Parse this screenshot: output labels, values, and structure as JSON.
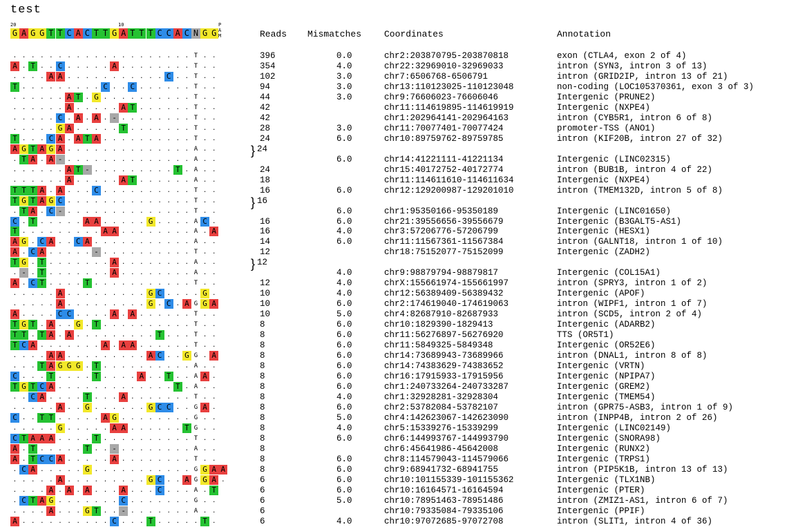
{
  "title": "test",
  "ruler": {
    "pos20": "20",
    "pos10": "10",
    "pam": "P A M"
  },
  "reference": [
    "G",
    "A",
    "G",
    "G",
    "T",
    "T",
    "C",
    "A",
    "C",
    "T",
    "T",
    "G",
    "A",
    "T",
    "T",
    "T",
    "C",
    "C",
    "A",
    "C",
    "N",
    "G",
    "G"
  ],
  "headers": {
    "reads": "Reads",
    "mismatches": "Mismatches",
    "coordinates": "Coordinates",
    "annotation": "Annotation"
  },
  "colors": {
    "A": "#e8403f",
    "C": "#2e8ce8",
    "G": "#f2e82a",
    "T": "#25c232",
    "N": "#a8a8a8"
  },
  "rows": [
    {
      "seq": "....................T..",
      "reads": "396",
      "mm": "0.0",
      "coord": "chr2:203870795-203870818",
      "ann": "exon (CTLA4, exon 2 of 4)"
    },
    {
      "seq": "A.T..C.....A........T..",
      "reads": "354",
      "mm": "4.0",
      "coord": "chr22:32969010-32969033",
      "ann": "intron (SYN3, intron 3 of 13)"
    },
    {
      "seq": "....AA...........C..T..",
      "reads": "102",
      "mm": "3.0",
      "coord": "chr7:6506768-6506791",
      "ann": "intron (GRID2IP, intron 13 of 21)"
    },
    {
      "seq": "T.........C..C......T..",
      "reads": "94",
      "mm": "3.0",
      "coord": "chr13:110123025-110123048",
      "ann": "non-coding (LOC105370361, exon 3 of 3)"
    },
    {
      "seq": "......AT.G..........T..",
      "reads": "44",
      "mm": "3.0",
      "coord": "chr9:76606023-76606046",
      "ann": "Intergenic (PRUNE2)"
    },
    {
      "seq": "......A.....AT......T..",
      "reads": "42",
      "mm": "",
      "coord": "chr11:114619895-114619919",
      "ann": "Intergenic (NXPE4)"
    },
    {
      "seq": ".....C.A.A.-........T..",
      "reads": "42",
      "mm": "",
      "coord": "chr1:202964141-202964163",
      "ann": "intron (CYB5R1, intron 6 of 8)"
    },
    {
      "seq": ".....GA.....T.......T..",
      "reads": "28",
      "mm": "3.0",
      "coord": "chr11:70077401-70077424",
      "ann": "promoter-TSS (ANO1)"
    },
    {
      "seq": "T...CA.ATA..........T..",
      "reads": "24",
      "mm": "6.0",
      "coord": "chr10:89759762-89759785",
      "ann": "intron (KIF20B, intron 27 of 32)"
    },
    {
      "seq": "AGTAGA..............A..",
      "reads": "24",
      "mm": "",
      "coord": "",
      "ann": "",
      "brace": "}"
    },
    {
      "seq": ".TA.A-..............A..",
      "reads": "",
      "mm": "6.0",
      "coord": "chr14:41221111-41221134",
      "ann": "Intergenic (LINC02315)"
    },
    {
      "seq": "......AT-.........T.A..",
      "reads": "24",
      "mm": "",
      "coord": "chr15:40172752-40172774",
      "ann": "intron (BUB1B, intron 4 of 22)"
    },
    {
      "seq": "......A.....AT......A..",
      "reads": "18",
      "mm": "",
      "coord": "chr11:114611610-114611634",
      "ann": "Intergenic (NXPE4)"
    },
    {
      "seq": "TTTA.A...C..........T..",
      "reads": "16",
      "mm": "6.0",
      "coord": "chr12:129200987-129201010",
      "ann": "intron (TMEM132D, intron 5 of 8)"
    },
    {
      "seq": "TGTAGC..............T..",
      "reads": "16",
      "mm": "",
      "coord": "",
      "ann": "",
      "brace": "}"
    },
    {
      "seq": ".TA.C-..............T..",
      "reads": "",
      "mm": "6.0",
      "coord": "chr1:95350166-95350189",
      "ann": "Intergenic (LINC01650)"
    },
    {
      "seq": "C.T.....AA.....G....AC.",
      "reads": "16",
      "mm": "6.0",
      "coord": "chr21:39556656-39556679",
      "ann": "Intergenic (B3GALT5-AS1)"
    },
    {
      "seq": "T.........AA........A.A",
      "reads": "16",
      "mm": "4.0",
      "coord": "chr3:57206776-57206799",
      "ann": "Intergenic (HESX1)"
    },
    {
      "seq": "AG.CA..CA...........A..",
      "reads": "14",
      "mm": "6.0",
      "coord": "chr11:11567361-11567384",
      "ann": "intron (GALNT18, intron 1 of 10)"
    },
    {
      "seq": "A.CA.....-..........T..",
      "reads": "12",
      "mm": "",
      "coord": "chr18:75152077-75152099",
      "ann": "Intergenic (ZADH2)"
    },
    {
      "seq": "TG.T.......A........A..",
      "reads": "12",
      "mm": "",
      "coord": "",
      "ann": "",
      "brace": "}"
    },
    {
      "seq": ".-.T.......A........A..",
      "reads": "",
      "mm": "4.0",
      "coord": "chr9:98879794-98879817",
      "ann": "Intergenic (COL15A1)"
    },
    {
      "seq": "A.CT....T...........T..",
      "reads": "12",
      "mm": "4.0",
      "coord": "chrX:155661974-155661997",
      "ann": "intron (SPRY3, intron 1 of 2)"
    },
    {
      "seq": ".....A.........GC....G.",
      "reads": "10",
      "mm": "4.0",
      "coord": "chr12:56389409-56389432",
      "ann": "Intergenic (APOF)"
    },
    {
      "seq": ".....A.........G.C.AGGA",
      "reads": "10",
      "mm": "6.0",
      "coord": "chr2:174619040-174619063",
      "ann": "intron (WIPF1, intron 1 of 7)"
    },
    {
      "seq": "A....CC....A.A......T..",
      "reads": "10",
      "mm": "5.0",
      "coord": "chr4:82687910-82687933",
      "ann": "intron (SCD5, intron 2 of 4)"
    },
    {
      "seq": "TGT.A..G.T..........T..",
      "reads": "8",
      "mm": "6.0",
      "coord": "chr10:1829390-1829413",
      "ann": "Intergenic (ADARB2)"
    },
    {
      "seq": "TT.TA.A.........T...T..",
      "reads": "8",
      "mm": "6.0",
      "coord": "chr11:56276897-56276920",
      "ann": "TTS (OR5T1)"
    },
    {
      "seq": "TCA.......A.AA......T..",
      "reads": "8",
      "mm": "6.0",
      "coord": "chr11:5849325-5849348",
      "ann": "Intergenic (OR52E6)"
    },
    {
      "seq": "....AA.........AC..GG.A",
      "reads": "8",
      "mm": "6.0",
      "coord": "chr14:73689943-73689966",
      "ann": "intron (DNAL1, intron 8 of 8)"
    },
    {
      "seq": "...TAGGG.T..........A..",
      "reads": "8",
      "mm": "6.0",
      "coord": "chr14:74383629-74383652",
      "ann": "Intergenic (VRTN)"
    },
    {
      "seq": "C...T....T....A..T..AA.",
      "reads": "8",
      "mm": "6.0",
      "coord": "chr16:17915933-17915956",
      "ann": "Intergenic (NPIPA7)"
    },
    {
      "seq": "TGTCA.............T.A..",
      "reads": "8",
      "mm": "6.0",
      "coord": "chr1:240733264-240733287",
      "ann": "Intergenic (GREM2)"
    },
    {
      "seq": "..CA....T...A.......T..",
      "reads": "8",
      "mm": "4.0",
      "coord": "chr1:32928281-32928304",
      "ann": "Intergenic (TMEM54)"
    },
    {
      "seq": ".....A..G......GCC..GA.",
      "reads": "8",
      "mm": "6.0",
      "coord": "chr2:53782084-53782107",
      "ann": "intron (GPR75-ASB3, intron 1 of 9)"
    },
    {
      "seq": "C..TT.....AG........G..",
      "reads": "8",
      "mm": "5.0",
      "coord": "chr4:142623067-142623090",
      "ann": "intron (INPP4B, intron 2 of 26)"
    },
    {
      "seq": ".....G.....AA......TG..",
      "reads": "8",
      "mm": "4.0",
      "coord": "chr5:15339276-15339299",
      "ann": "Intergenic (LINC02149)"
    },
    {
      "seq": "CTAAA....T..........T..",
      "reads": "8",
      "mm": "6.0",
      "coord": "chr6:144993767-144993790",
      "ann": "Intergenic (SNORA98)"
    },
    {
      "seq": "A.T.....T..-........A..",
      "reads": "8",
      "mm": "",
      "coord": "chr6:45641986-45642008",
      "ann": "Intergenic (RUNX2)"
    },
    {
      "seq": "A.TCCA.....A........T..",
      "reads": "8",
      "mm": "6.0",
      "coord": "chr8:114579043-114579066",
      "ann": "Intergenic (TRPS1)"
    },
    {
      "seq": ".CA.....G...........GGAA",
      "reads": "8",
      "mm": "6.0",
      "coord": "chr9:68941732-68941755",
      "ann": "intron (PIP5K1B, intron 13 of 13)"
    },
    {
      "seq": ".....A.........GC..AGGA.",
      "reads": "6",
      "mm": "6.0",
      "coord": "chr10:101155339-101155362",
      "ann": "Intergenic (TLX1NB)"
    },
    {
      "seq": "....A.A.A...A...C...A.T",
      "reads": "6",
      "mm": "6.0",
      "coord": "chr10:16164571-16164594",
      "ann": "Intergenic (PTER)"
    },
    {
      "seq": ".CTAG.......C.......G..",
      "reads": "6",
      "mm": "5.0",
      "coord": "chr10:78951463-78951486",
      "ann": "intron (ZMIZ1-AS1, intron 6 of 7)"
    },
    {
      "seq": "....A...GT..-.......A..",
      "reads": "6",
      "mm": "",
      "coord": "chr10:79335084-79335106",
      "ann": "Intergenic (PPIF)"
    },
    {
      "seq": "A..........C...T.....T.",
      "reads": "6",
      "mm": "4.0",
      "coord": "chr10:97072685-97072708",
      "ann": "intron (SLIT1, intron 4 of 36)"
    }
  ]
}
